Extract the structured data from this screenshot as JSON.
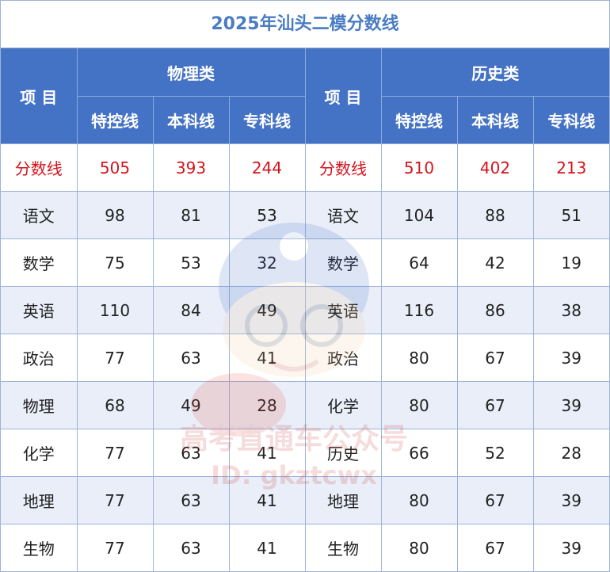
{
  "title": "2025年汕头二模分数线",
  "headers": {
    "item": "项 目",
    "physics_group": "物理类",
    "history_group": "历史类",
    "sub_physics": [
      "特控线",
      "本科线",
      "专科线"
    ],
    "sub_history": [
      "特控线",
      "本科线",
      "专科线"
    ]
  },
  "rows": [
    {
      "p_label": "分数线",
      "p": [
        "505",
        "393",
        "244"
      ],
      "h_label": "分数线",
      "h": [
        "510",
        "402",
        "213"
      ]
    },
    {
      "p_label": "语文",
      "p": [
        "98",
        "81",
        "53"
      ],
      "h_label": "语文",
      "h": [
        "104",
        "88",
        "51"
      ]
    },
    {
      "p_label": "数学",
      "p": [
        "75",
        "53",
        "32"
      ],
      "h_label": "数学",
      "h": [
        "64",
        "42",
        "19"
      ]
    },
    {
      "p_label": "英语",
      "p": [
        "110",
        "84",
        "49"
      ],
      "h_label": "英语",
      "h": [
        "116",
        "86",
        "38"
      ]
    },
    {
      "p_label": "政治",
      "p": [
        "77",
        "63",
        "41"
      ],
      "h_label": "政治",
      "h": [
        "80",
        "67",
        "39"
      ]
    },
    {
      "p_label": "物理",
      "p": [
        "68",
        "49",
        "28"
      ],
      "h_label": "化学",
      "h": [
        "80",
        "67",
        "39"
      ]
    },
    {
      "p_label": "化学",
      "p": [
        "77",
        "63",
        "41"
      ],
      "h_label": "历史",
      "h": [
        "66",
        "52",
        "28"
      ]
    },
    {
      "p_label": "地理",
      "p": [
        "77",
        "63",
        "41"
      ],
      "h_label": "地理",
      "h": [
        "80",
        "67",
        "39"
      ]
    },
    {
      "p_label": "生物",
      "p": [
        "77",
        "63",
        "41"
      ],
      "h_label": "生物",
      "h": [
        "80",
        "67",
        "39"
      ]
    }
  ],
  "watermark": {
    "line1": "高考直通车公众号",
    "line2": "ID: gkztcwx",
    "icon": "mascot-boy-with-cap"
  },
  "colors": {
    "header_bg": "#4472c4",
    "title_text": "#4a7cc4",
    "score_text": "#d4141c",
    "alt_row_bg": "#e9eef8"
  }
}
